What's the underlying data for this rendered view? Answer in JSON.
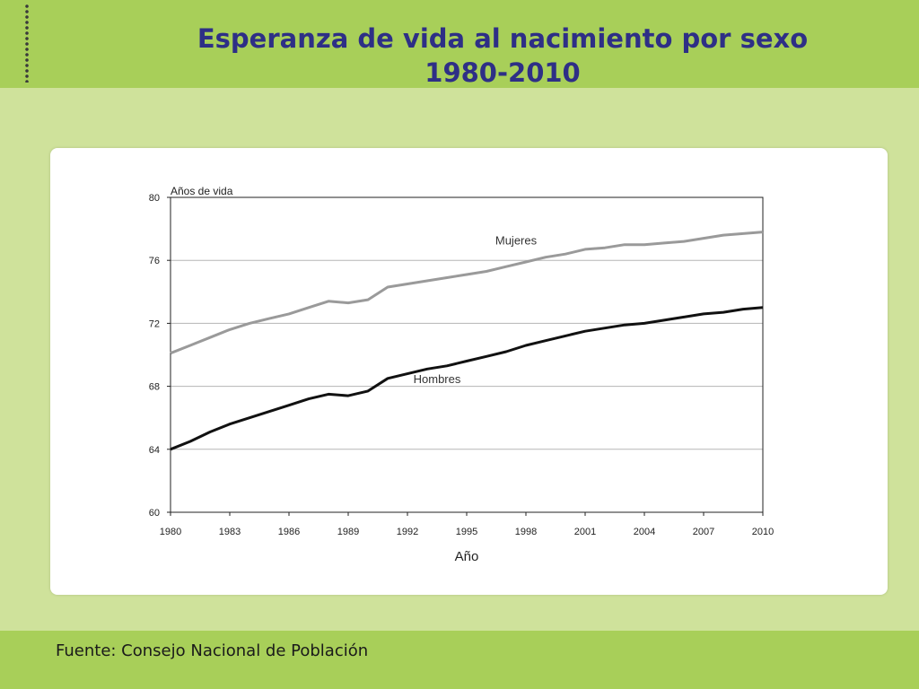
{
  "slide": {
    "title_line1": "Esperanza de vida al nacimiento por sexo",
    "title_line2": "1980-2010",
    "source": "Fuente: Consejo Nacional de Población"
  },
  "colors": {
    "background": "#cfe29b",
    "band": "#a8cf59",
    "title": "#2e2f86",
    "mujeres": "#9a9a9a",
    "hombres": "#111111"
  },
  "chart_data": {
    "type": "line",
    "title": "",
    "xlabel": "Año",
    "ylabel": "Años de vida",
    "xlim": [
      1980,
      2010
    ],
    "ylim": [
      60,
      80
    ],
    "x_ticks": [
      1980,
      1983,
      1986,
      1989,
      1992,
      1995,
      1998,
      2001,
      2004,
      2007,
      2010
    ],
    "y_ticks": [
      60,
      64,
      68,
      72,
      76,
      80
    ],
    "grid": "horizontal",
    "legend": "inline labels",
    "x": [
      1980,
      1981,
      1982,
      1983,
      1984,
      1985,
      1986,
      1987,
      1988,
      1989,
      1990,
      1991,
      1992,
      1993,
      1994,
      1995,
      1996,
      1997,
      1998,
      1999,
      2000,
      2001,
      2002,
      2003,
      2004,
      2005,
      2006,
      2007,
      2008,
      2009,
      2010
    ],
    "series": [
      {
        "name": "Mujeres",
        "color": "#9a9a9a",
        "values": [
          70.1,
          70.6,
          71.1,
          71.6,
          72.0,
          72.3,
          72.6,
          73.0,
          73.4,
          73.3,
          73.5,
          74.3,
          74.5,
          74.7,
          74.9,
          75.1,
          75.3,
          75.6,
          75.9,
          76.2,
          76.4,
          76.7,
          76.8,
          77.0,
          77.0,
          77.1,
          77.2,
          77.4,
          77.6,
          77.7,
          77.8
        ],
        "label_year": 1997.5,
        "label_value": 77.0
      },
      {
        "name": "Hombres",
        "color": "#111111",
        "values": [
          64.0,
          64.5,
          65.1,
          65.6,
          66.0,
          66.4,
          66.8,
          67.2,
          67.5,
          67.4,
          67.7,
          68.5,
          68.8,
          69.1,
          69.3,
          69.6,
          69.9,
          70.2,
          70.6,
          70.9,
          71.2,
          71.5,
          71.7,
          71.9,
          72.0,
          72.2,
          72.4,
          72.6,
          72.7,
          72.9,
          73.0
        ],
        "label_year": 1993.5,
        "label_value": 68.2
      }
    ]
  }
}
